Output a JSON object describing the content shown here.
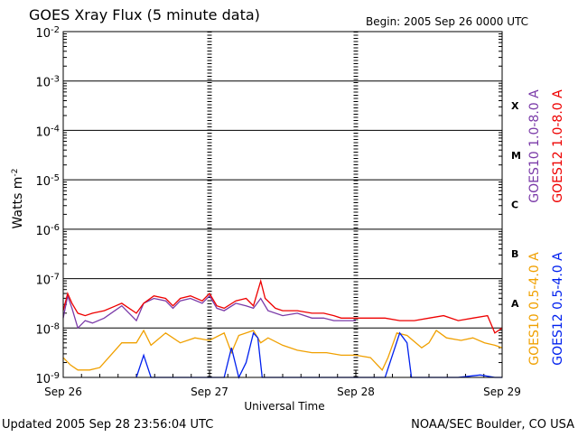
{
  "chart_data": {
    "type": "line",
    "title": "GOES Xray Flux (5 minute data)",
    "begin_label": "Begin:  2005 Sep 26 0000 UTC",
    "xlabel": "Universal Time",
    "ylabel_base": "Watts m",
    "ylabel_exp": "-2",
    "yscale": "log",
    "ylim": [
      1e-09,
      0.01
    ],
    "xlim": [
      0,
      3
    ],
    "x_ticks": [
      {
        "x": 0,
        "label": "Sep 26"
      },
      {
        "x": 1,
        "label": "Sep 27"
      },
      {
        "x": 2,
        "label": "Sep 28"
      },
      {
        "x": 3,
        "label": "Sep 29"
      }
    ],
    "y_ticks": [
      {
        "exp": -9,
        "base": "10",
        "power": "-9"
      },
      {
        "exp": -8,
        "base": "10",
        "power": "-8"
      },
      {
        "exp": -7,
        "base": "10",
        "power": "-7"
      },
      {
        "exp": -6,
        "base": "10",
        "power": "-6"
      },
      {
        "exp": -5,
        "base": "10",
        "power": "-5"
      },
      {
        "exp": -4,
        "base": "10",
        "power": "-4"
      },
      {
        "exp": -3,
        "base": "10",
        "power": "-3"
      },
      {
        "exp": -2,
        "base": "10",
        "power": "-2"
      }
    ],
    "flare_classes": [
      {
        "label": "X",
        "exp": -4
      },
      {
        "label": "M",
        "exp": -5
      },
      {
        "label": "C",
        "exp": -6
      },
      {
        "label": "B",
        "exp": -7
      },
      {
        "label": "A",
        "exp": -8
      }
    ],
    "grid": true,
    "legend_placement": "right, vertical",
    "series": [
      {
        "name": "GOES10 1.0-8.0 A",
        "color": "#7a3aa8",
        "points": [
          [
            0,
            -7.8
          ],
          [
            0.03,
            -7.35
          ],
          [
            0.06,
            -7.6
          ],
          [
            0.1,
            -8.0
          ],
          [
            0.15,
            -7.85
          ],
          [
            0.2,
            -7.9
          ],
          [
            0.28,
            -7.8
          ],
          [
            0.4,
            -7.55
          ],
          [
            0.5,
            -7.85
          ],
          [
            0.55,
            -7.5
          ],
          [
            0.62,
            -7.4
          ],
          [
            0.7,
            -7.45
          ],
          [
            0.75,
            -7.6
          ],
          [
            0.8,
            -7.45
          ],
          [
            0.87,
            -7.4
          ],
          [
            0.95,
            -7.5
          ],
          [
            1.0,
            -7.35
          ],
          [
            1.05,
            -7.6
          ],
          [
            1.1,
            -7.65
          ],
          [
            1.18,
            -7.5
          ],
          [
            1.25,
            -7.55
          ],
          [
            1.3,
            -7.6
          ],
          [
            1.35,
            -7.4
          ],
          [
            1.4,
            -7.65
          ],
          [
            1.5,
            -7.75
          ],
          [
            1.6,
            -7.7
          ],
          [
            1.7,
            -7.8
          ],
          [
            1.78,
            -7.8
          ],
          [
            1.85,
            -7.85
          ],
          [
            1.9,
            -7.85
          ],
          [
            2.0,
            -7.85
          ]
        ]
      },
      {
        "name": "GOES12 1.0-8.0 A",
        "color": "#ee0000",
        "points": [
          [
            0,
            -7.65
          ],
          [
            0.03,
            -7.3
          ],
          [
            0.06,
            -7.5
          ],
          [
            0.1,
            -7.7
          ],
          [
            0.15,
            -7.75
          ],
          [
            0.2,
            -7.7
          ],
          [
            0.28,
            -7.65
          ],
          [
            0.4,
            -7.5
          ],
          [
            0.5,
            -7.7
          ],
          [
            0.55,
            -7.5
          ],
          [
            0.62,
            -7.35
          ],
          [
            0.7,
            -7.4
          ],
          [
            0.75,
            -7.55
          ],
          [
            0.8,
            -7.4
          ],
          [
            0.87,
            -7.35
          ],
          [
            0.95,
            -7.45
          ],
          [
            1.0,
            -7.3
          ],
          [
            1.05,
            -7.55
          ],
          [
            1.1,
            -7.6
          ],
          [
            1.18,
            -7.45
          ],
          [
            1.25,
            -7.4
          ],
          [
            1.3,
            -7.55
          ],
          [
            1.35,
            -7.05
          ],
          [
            1.38,
            -7.4
          ],
          [
            1.45,
            -7.6
          ],
          [
            1.5,
            -7.65
          ],
          [
            1.6,
            -7.65
          ],
          [
            1.7,
            -7.7
          ],
          [
            1.78,
            -7.7
          ],
          [
            1.85,
            -7.75
          ],
          [
            1.9,
            -7.8
          ],
          [
            2.0,
            -7.8
          ],
          [
            2.1,
            -7.8
          ],
          [
            2.2,
            -7.8
          ],
          [
            2.3,
            -7.85
          ],
          [
            2.4,
            -7.85
          ],
          [
            2.5,
            -7.8
          ],
          [
            2.6,
            -7.75
          ],
          [
            2.7,
            -7.85
          ],
          [
            2.8,
            -7.8
          ],
          [
            2.9,
            -7.75
          ],
          [
            2.95,
            -8.1
          ],
          [
            3.0,
            -8.0
          ]
        ]
      },
      {
        "name": "GOES10 0.5-4.0 A",
        "color": "#f0a000",
        "points": [
          [
            0,
            -8.6
          ],
          [
            0.05,
            -8.75
          ],
          [
            0.1,
            -8.85
          ],
          [
            0.18,
            -8.85
          ],
          [
            0.25,
            -8.8
          ],
          [
            0.4,
            -8.3
          ],
          [
            0.5,
            -8.3
          ],
          [
            0.55,
            -8.05
          ],
          [
            0.6,
            -8.35
          ],
          [
            0.7,
            -8.1
          ],
          [
            0.8,
            -8.3
          ],
          [
            0.9,
            -8.2
          ],
          [
            1.0,
            -8.25
          ],
          [
            1.1,
            -8.1
          ],
          [
            1.15,
            -8.5
          ],
          [
            1.2,
            -8.15
          ],
          [
            1.3,
            -8.05
          ],
          [
            1.35,
            -8.3
          ],
          [
            1.4,
            -8.2
          ],
          [
            1.5,
            -8.35
          ],
          [
            1.6,
            -8.45
          ],
          [
            1.7,
            -8.5
          ],
          [
            1.8,
            -8.5
          ],
          [
            1.9,
            -8.55
          ],
          [
            2.0,
            -8.55
          ],
          [
            2.1,
            -8.6
          ],
          [
            2.18,
            -8.85
          ],
          [
            2.22,
            -8.6
          ],
          [
            2.28,
            -8.1
          ],
          [
            2.35,
            -8.15
          ],
          [
            2.45,
            -8.4
          ],
          [
            2.5,
            -8.3
          ],
          [
            2.55,
            -8.05
          ],
          [
            2.62,
            -8.2
          ],
          [
            2.72,
            -8.25
          ],
          [
            2.8,
            -8.2
          ],
          [
            2.88,
            -8.3
          ],
          [
            2.95,
            -8.35
          ],
          [
            3.0,
            -8.4
          ]
        ]
      },
      {
        "name": "GOES12 0.5-4.0 A",
        "color": "#0020ee",
        "points": [
          [
            0.5,
            -9.0
          ],
          [
            0.55,
            -8.55
          ],
          [
            0.6,
            -9.0
          ],
          [
            0.7,
            -9.0
          ],
          [
            0.8,
            -9.0
          ],
          [
            0.9,
            -9.0
          ],
          [
            1.0,
            -9.0
          ],
          [
            1.1,
            -9.0
          ],
          [
            1.15,
            -8.4
          ],
          [
            1.2,
            -9.0
          ],
          [
            1.25,
            -8.7
          ],
          [
            1.3,
            -8.1
          ],
          [
            1.33,
            -8.2
          ],
          [
            1.36,
            -9.0
          ],
          [
            1.45,
            -9.0
          ],
          [
            1.55,
            -9.0
          ],
          [
            1.6,
            -9.0
          ],
          [
            2.2,
            -9.0
          ],
          [
            2.3,
            -8.1
          ],
          [
            2.35,
            -8.3
          ],
          [
            2.38,
            -9.0
          ],
          [
            2.5,
            -9.0
          ],
          [
            2.6,
            -9.0
          ],
          [
            2.7,
            -9.0
          ],
          [
            2.85,
            -8.95
          ],
          [
            2.95,
            -9.0
          ],
          [
            3.0,
            -9.0
          ]
        ]
      }
    ]
  },
  "footer": {
    "updated": "Updated 2005 Sep 28 23:56:04 UTC",
    "credit": "NOAA/SEC Boulder, CO USA"
  }
}
